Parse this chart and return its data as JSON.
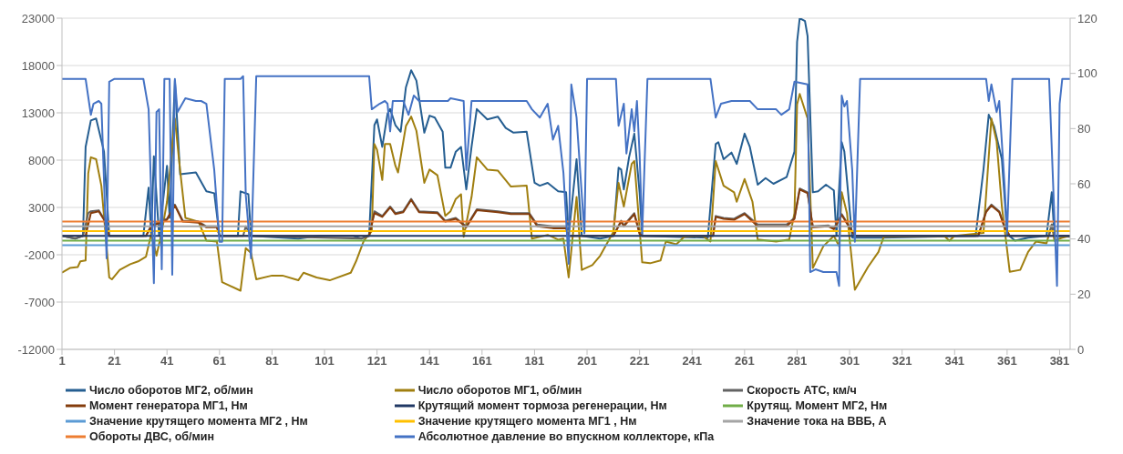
{
  "chart_data": {
    "type": "line",
    "xlim": [
      1,
      385
    ],
    "xticks": [
      1,
      21,
      41,
      61,
      81,
      101,
      121,
      141,
      161,
      181,
      201,
      221,
      241,
      261,
      281,
      301,
      321,
      341,
      361,
      381
    ],
    "ylim": [
      -12000,
      23000
    ],
    "yticks": [
      -12000,
      -7000,
      -2000,
      3000,
      8000,
      13000,
      18000,
      23000
    ],
    "y2lim": [
      0,
      120
    ],
    "y2ticks": [
      0,
      20,
      40,
      60,
      80,
      100,
      120
    ],
    "grid": "y",
    "legend": "bottom",
    "marker": "none",
    "series": [
      {
        "name": "Число оборотов МГ2, об/мин",
        "color": "#255e91",
        "x": [
          1,
          6,
          9,
          10,
          12,
          14,
          17,
          19,
          32,
          34,
          35,
          36,
          38,
          41,
          42,
          44,
          46,
          52,
          56,
          59,
          61,
          68,
          69,
          72,
          73,
          91,
          99,
          112,
          115,
          118,
          120,
          121,
          123,
          125,
          126,
          128,
          130,
          132,
          134,
          136,
          139,
          141,
          143,
          146,
          147,
          149,
          151,
          153,
          155,
          157,
          159,
          163,
          167,
          170,
          173,
          178,
          181,
          183,
          186,
          190,
          193,
          194,
          197,
          199,
          206,
          211,
          213,
          214,
          215,
          217,
          219,
          221,
          222,
          247,
          250,
          251,
          253,
          256,
          258,
          261,
          263,
          266,
          269,
          272,
          277,
          280,
          281,
          282,
          284,
          285,
          287,
          289,
          292,
          295,
          296,
          298,
          299,
          302,
          313,
          349,
          352,
          354,
          356,
          359,
          361,
          364,
          369,
          376,
          378,
          379,
          385
        ],
        "values": [
          0,
          -300,
          0,
          9400,
          12200,
          12400,
          8900,
          0,
          0,
          5100,
          0,
          8400,
          0,
          7400,
          1900,
          16400,
          6500,
          6700,
          4700,
          4500,
          0,
          0,
          4700,
          4400,
          0,
          -300,
          0,
          0,
          -300,
          100,
          11700,
          12300,
          9400,
          12900,
          13400,
          11700,
          11000,
          15700,
          17500,
          16400,
          10900,
          12700,
          12500,
          11000,
          7200,
          7200,
          8900,
          9400,
          4900,
          9400,
          13400,
          12300,
          12600,
          11400,
          10900,
          11000,
          5600,
          5300,
          5600,
          4700,
          4600,
          0,
          8100,
          0,
          -300,
          0,
          7200,
          7000,
          4900,
          8300,
          10800,
          4600,
          0,
          -200,
          9700,
          9900,
          8100,
          8800,
          7600,
          10800,
          9400,
          5400,
          6100,
          5500,
          6200,
          8900,
          20500,
          23000,
          22700,
          21100,
          4600,
          4700,
          5400,
          4800,
          0,
          9900,
          8900,
          -200,
          -200,
          0,
          7000,
          12800,
          11600,
          8100,
          200,
          -500,
          -200,
          0,
          4600,
          0,
          -100
        ]
      },
      {
        "name": "Число оборотов МГ1, об/мин",
        "color": "#a07f10",
        "x": [
          1,
          4,
          7,
          8,
          10,
          11,
          12,
          14,
          16,
          19,
          20,
          23,
          27,
          30,
          33,
          35,
          37,
          39,
          41,
          44,
          46,
          48,
          53,
          56,
          60,
          62,
          69,
          71,
          73,
          75,
          81,
          85,
          91,
          93,
          98,
          103,
          111,
          113,
          116,
          119,
          120,
          121,
          123,
          124,
          126,
          128,
          129,
          132,
          134,
          136,
          139,
          141,
          144,
          147,
          149,
          151,
          153,
          154,
          157,
          159,
          163,
          167,
          172,
          178,
          180,
          186,
          190,
          192,
          194,
          197,
          199,
          203,
          206,
          211,
          213,
          215,
          218,
          219,
          222,
          225,
          229,
          231,
          235,
          238,
          245,
          248,
          250,
          253,
          257,
          258,
          261,
          264,
          266,
          273,
          278,
          280,
          281,
          282,
          285,
          287,
          291,
          295,
          297,
          298,
          300,
          303,
          308,
          312,
          314,
          337,
          339,
          341,
          352,
          355,
          357,
          359,
          362,
          366,
          369,
          372,
          376,
          378,
          379,
          382,
          385
        ],
        "values": [
          -3900,
          -3400,
          -3300,
          -2700,
          -2600,
          6600,
          8300,
          8100,
          5300,
          -4400,
          -4600,
          -3600,
          -3000,
          -2700,
          -2200,
          200,
          -2100,
          400,
          3600,
          12400,
          6900,
          1900,
          1500,
          -500,
          -600,
          -4900,
          -5800,
          -1300,
          -1800,
          -4600,
          -4200,
          -4200,
          -4700,
          -3900,
          -4400,
          -4700,
          -3900,
          -2700,
          -500,
          500,
          9700,
          9100,
          5900,
          9700,
          9700,
          7400,
          6700,
          11600,
          12600,
          11100,
          5600,
          7000,
          6400,
          2100,
          2600,
          3900,
          4400,
          -100,
          4100,
          8300,
          7000,
          6900,
          5200,
          5300,
          -300,
          100,
          -400,
          -300,
          -4400,
          4100,
          -3600,
          -3100,
          -2100,
          400,
          5600,
          3100,
          7600,
          7900,
          -2800,
          -2900,
          -2600,
          -600,
          -900,
          -100,
          0,
          -600,
          7900,
          5300,
          4600,
          3600,
          6000,
          3600,
          -400,
          -600,
          -400,
          2400,
          13900,
          15000,
          12400,
          -3400,
          -1100,
          0,
          -1100,
          4600,
          2400,
          -5700,
          -3300,
          -1700,
          -100,
          0,
          -500,
          0,
          300,
          12400,
          10000,
          3100,
          -3800,
          -3600,
          -1700,
          -600,
          -800,
          1200,
          -500,
          -200,
          0
        ]
      },
      {
        "name": "Скорость АТС, км/ч",
        "color": "#636363",
        "x": [
          1,
          6,
          9,
          11,
          12,
          15,
          17,
          19,
          33,
          35,
          41,
          44,
          47,
          53,
          56,
          60,
          61,
          70,
          71,
          73,
          115,
          118,
          120,
          123,
          126,
          128,
          131,
          134,
          137,
          144,
          147,
          151,
          155,
          159,
          167,
          172,
          179,
          182,
          188,
          193,
          194,
          211,
          214,
          215,
          219,
          221,
          222,
          249,
          250,
          253,
          257,
          261,
          266,
          277,
          280,
          282,
          285,
          287,
          293,
          295,
          298,
          300,
          303,
          350,
          353,
          355,
          358,
          360,
          362,
          377,
          378,
          379,
          385
        ],
        "values": [
          0,
          -300,
          0,
          2400,
          2600,
          2700,
          1800,
          0,
          0,
          1100,
          1800,
          3300,
          1600,
          1500,
          1000,
          1000,
          0,
          0,
          1000,
          0,
          -300,
          0,
          2600,
          2100,
          3100,
          2400,
          2600,
          3900,
          2600,
          2500,
          1600,
          1900,
          1000,
          2800,
          2600,
          2400,
          2400,
          1200,
          1000,
          1000,
          0,
          0,
          1600,
          1100,
          2400,
          300,
          0,
          0,
          2100,
          1900,
          1800,
          2400,
          1200,
          1200,
          1900,
          5000,
          4600,
          1000,
          1100,
          800,
          2300,
          1400,
          0,
          0,
          2600,
          3300,
          2600,
          1000,
          0,
          0,
          1200,
          0,
          0
        ]
      },
      {
        "name": "Момент генератора МГ1, Нм",
        "color": "#843c0c",
        "x": [
          1,
          10,
          11,
          12,
          15,
          17,
          19,
          33,
          35,
          41,
          44,
          47,
          53,
          56,
          60,
          61,
          118,
          120,
          123,
          126,
          128,
          131,
          134,
          137,
          144,
          147,
          151,
          155,
          159,
          167,
          172,
          179,
          182,
          188,
          193,
          194,
          211,
          214,
          215,
          219,
          221,
          222,
          249,
          250,
          253,
          257,
          261,
          266,
          277,
          280,
          282,
          285,
          287,
          293,
          295,
          298,
          300,
          303,
          350,
          353,
          355,
          358,
          360,
          362,
          385
        ],
        "values": [
          0,
          0,
          1200,
          2400,
          2600,
          1700,
          0,
          0,
          1000,
          1700,
          3200,
          1500,
          1400,
          900,
          900,
          0,
          0,
          2400,
          2000,
          3000,
          2300,
          2500,
          3800,
          2500,
          2400,
          1500,
          1800,
          900,
          2700,
          2500,
          2300,
          2300,
          1000,
          800,
          800,
          0,
          0,
          1500,
          1000,
          2300,
          200,
          0,
          0,
          2000,
          1800,
          1700,
          2300,
          1000,
          1000,
          1800,
          4900,
          4500,
          900,
          1000,
          700,
          2200,
          1300,
          0,
          0,
          2500,
          3200,
          2500,
          900,
          0,
          0
        ]
      },
      {
        "name": "Крутящий момент тормоза регенерации, Нм",
        "color": "#203864",
        "x": [
          1,
          385
        ],
        "values": [
          0,
          0
        ]
      },
      {
        "name": "Крутящ. Момент МГ2, Нм",
        "color": "#70ad47",
        "x": [
          1,
          385
        ],
        "values": [
          -500,
          -500
        ]
      },
      {
        "name": "Значение крутящего момента МГ2 , Нм",
        "color": "#5b9bd5",
        "x": [
          1,
          385
        ],
        "values": [
          -1000,
          -1000
        ]
      },
      {
        "name": "Значение крутящего момента МГ1 , Нм",
        "color": "#ffc000",
        "x": [
          1,
          385
        ],
        "values": [
          500,
          500
        ]
      },
      {
        "name": "Значение тока на ВВБ, А",
        "color": "#a5a5a5",
        "x": [
          1,
          385
        ],
        "values": [
          1000,
          1000
        ]
      },
      {
        "name": "Обороты ДВС, об/мин",
        "color": "#ed7d31",
        "x": [
          1,
          385
        ],
        "values": [
          1500,
          1500
        ]
      },
      {
        "name": "Абсолютное давление во впускном коллекторе, кПа",
        "color": "#4472c4",
        "axis": "y2",
        "x": [
          1,
          10,
          12,
          13,
          15,
          16,
          18,
          19,
          21,
          32,
          34,
          36,
          37,
          38,
          39,
          40,
          42,
          43,
          44,
          45,
          48,
          52,
          54,
          56,
          59,
          61,
          62,
          63,
          69,
          70,
          71,
          73,
          75,
          118,
          119,
          122,
          124,
          125,
          126,
          127,
          131,
          133,
          135,
          137,
          139,
          148,
          149,
          154,
          155,
          157,
          161,
          178,
          180,
          183,
          186,
          188,
          190,
          192,
          194,
          195,
          197,
          200,
          201,
          212,
          213,
          215,
          216,
          218,
          219,
          220,
          221,
          222,
          224,
          248,
          250,
          252,
          256,
          263,
          266,
          273,
          275,
          278,
          280,
          285,
          286,
          288,
          291,
          296,
          297,
          298,
          299,
          300,
          302,
          303,
          305,
          353,
          354,
          355,
          357,
          358,
          360,
          361,
          363,
          377,
          380,
          381,
          382,
          385
        ],
        "values": [
          98,
          98,
          85,
          89,
          90,
          89,
          33,
          97,
          98,
          98,
          87,
          24,
          86,
          87,
          29,
          98,
          98,
          27,
          98,
          86,
          91,
          90,
          90,
          89,
          65,
          39,
          39,
          98,
          98,
          99,
          56,
          33,
          99,
          99,
          87,
          89,
          90,
          89,
          79,
          90,
          90,
          85,
          92,
          90,
          90,
          90,
          91,
          90,
          65,
          90,
          90,
          90,
          87,
          84,
          89,
          76,
          81,
          64,
          31,
          96,
          84,
          42,
          98,
          98,
          81,
          89,
          71,
          87,
          79,
          90,
          71,
          42,
          98,
          98,
          84,
          89,
          90,
          90,
          87,
          87,
          85,
          87,
          97,
          96,
          28,
          29,
          28,
          28,
          23,
          92,
          88,
          90,
          65,
          39,
          98,
          98,
          90,
          96,
          86,
          90,
          60,
          42,
          98,
          98,
          23,
          89,
          98,
          98
        ]
      }
    ]
  }
}
